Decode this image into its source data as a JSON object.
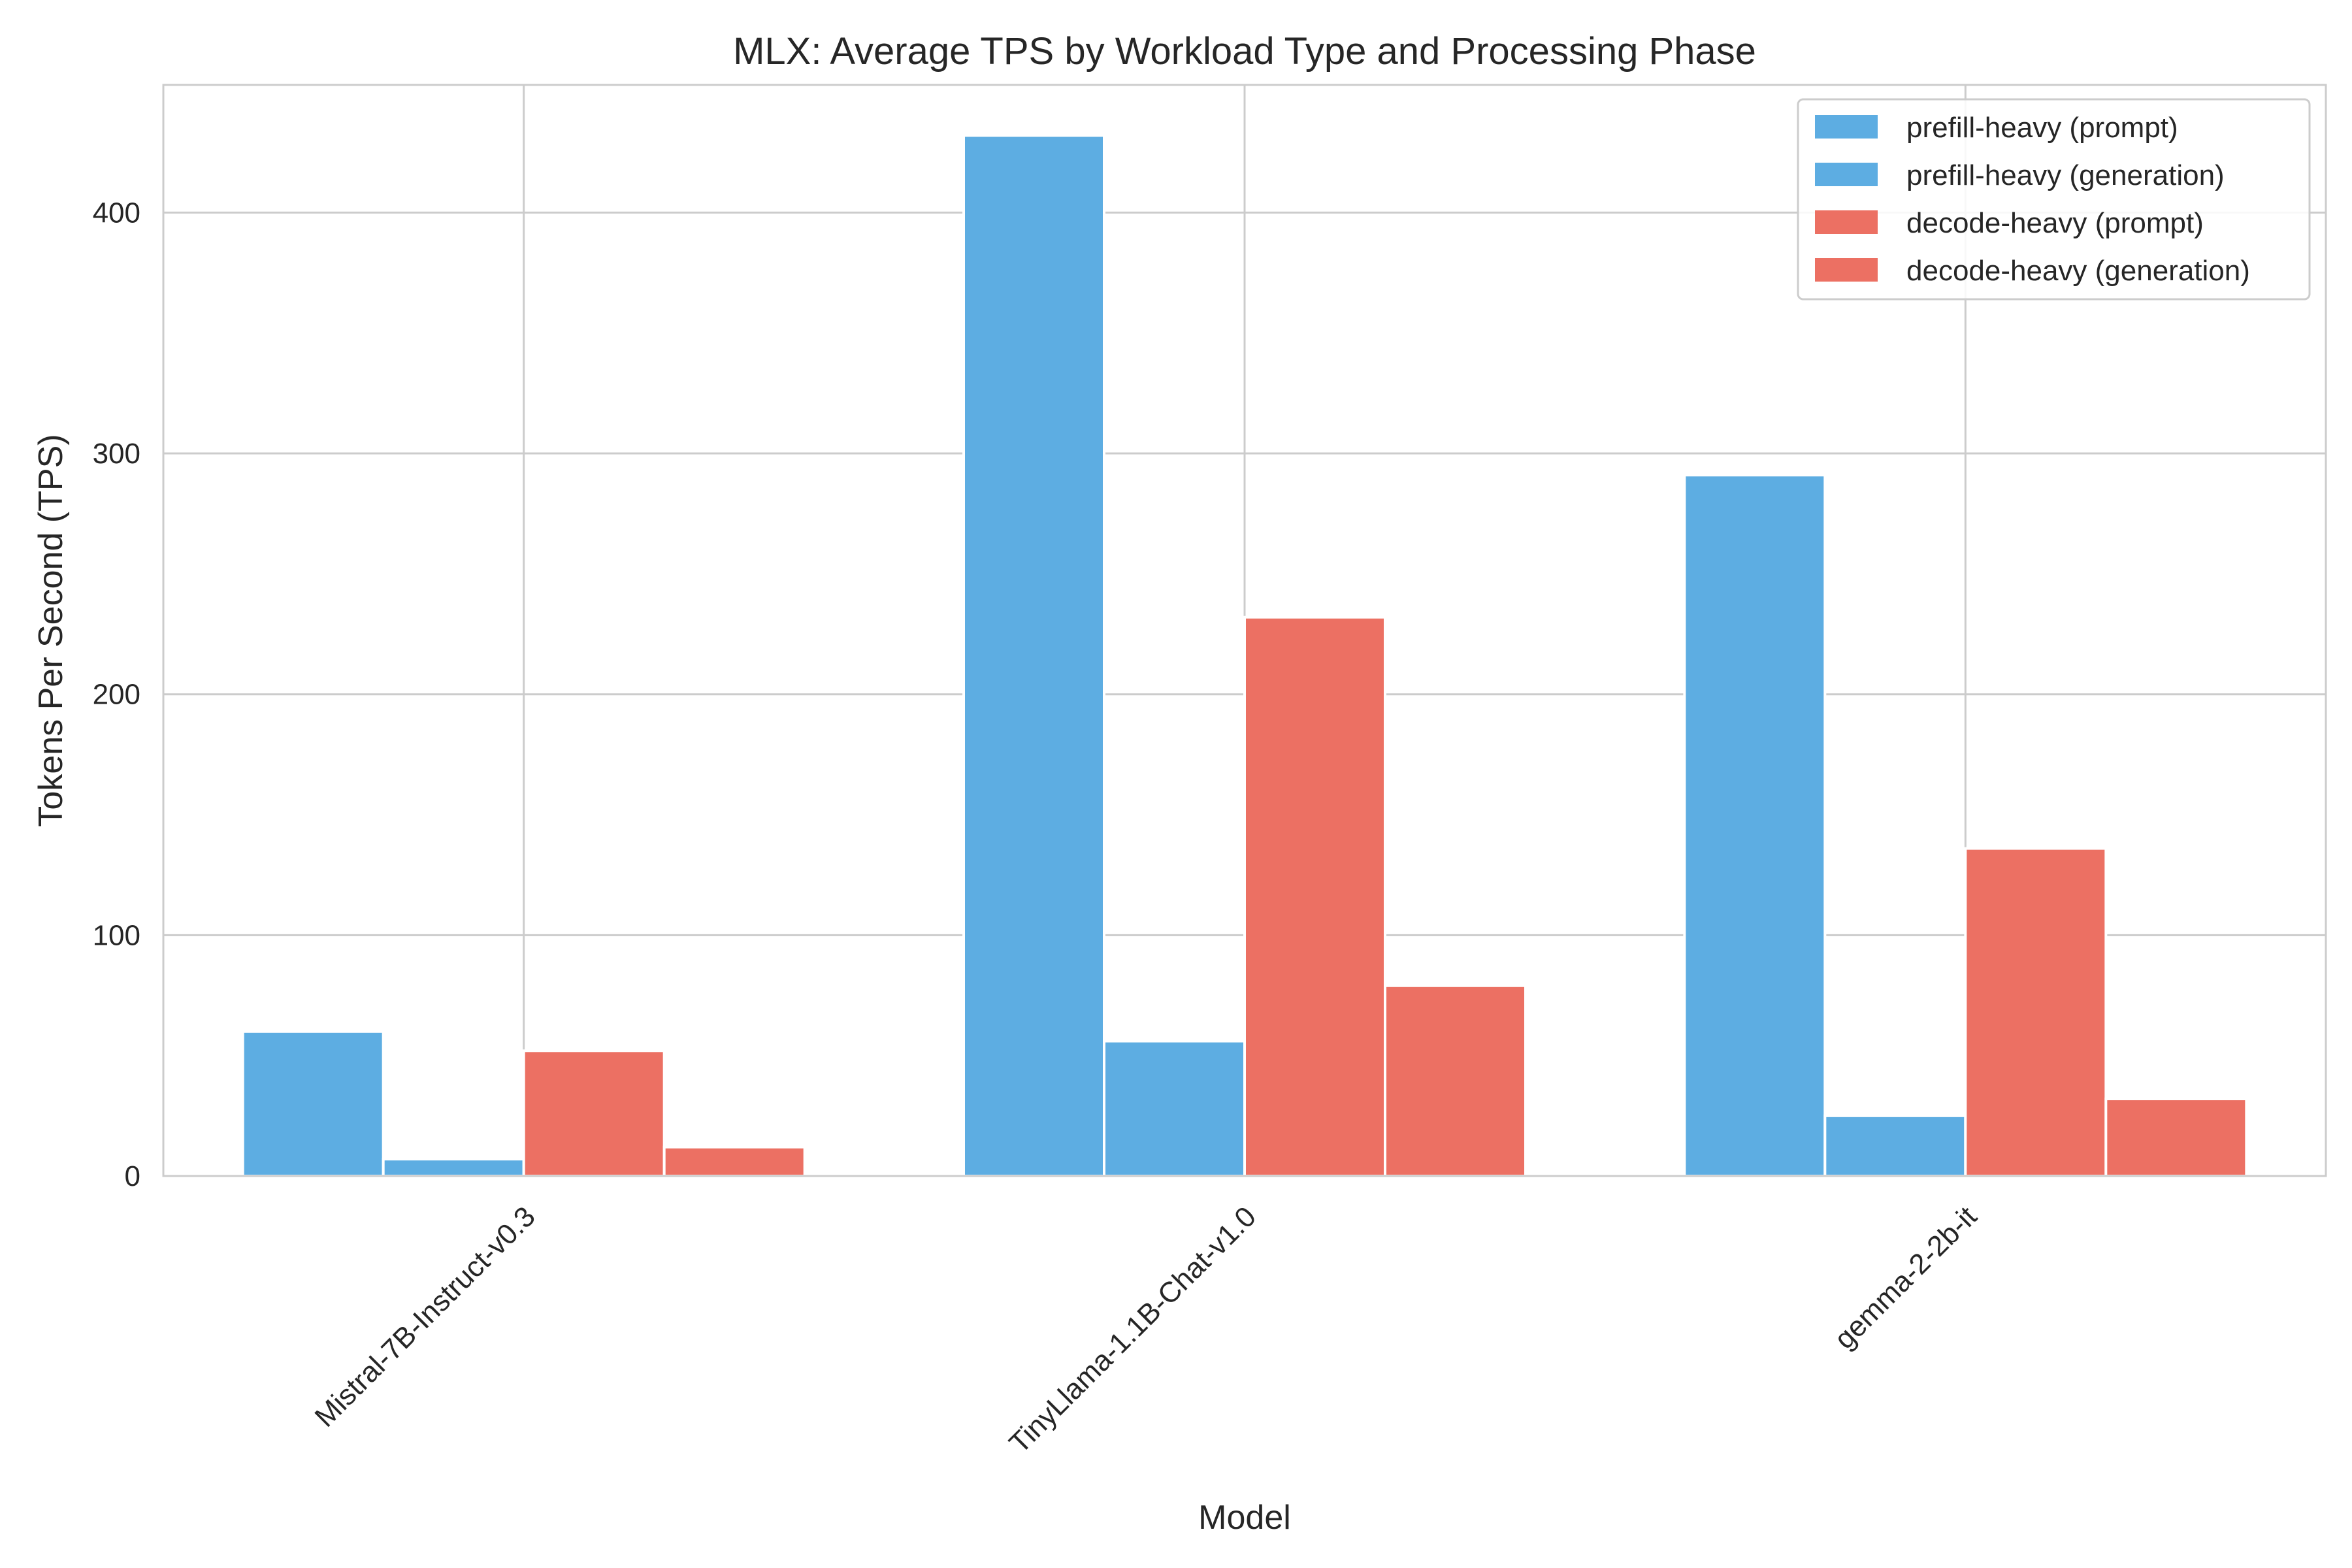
{
  "chart_data": {
    "type": "bar",
    "title": "MLX: Average TPS by Workload Type and Processing Phase",
    "xlabel": "Model",
    "ylabel": "Tokens Per Second (TPS)",
    "categories": [
      "Mistral-7B-Instruct-v0.3",
      "TinyLlama-1.1B-Chat-v1.0",
      "gemma-2-2b-it"
    ],
    "yticks": [
      0,
      100,
      200,
      300,
      400
    ],
    "ylim": [
      0,
      453
    ],
    "grid": true,
    "legend_position": "top-right",
    "series": [
      {
        "name": "prefill-heavy (prompt)",
        "color": "#5DADE2",
        "values": [
          60,
          432,
          291
        ]
      },
      {
        "name": "prefill-heavy (generation)",
        "color": "#5DADE2",
        "values": [
          7,
          56,
          25
        ]
      },
      {
        "name": "decode-heavy (prompt)",
        "color": "#EC7063",
        "values": [
          52,
          232,
          136
        ]
      },
      {
        "name": "decode-heavy (generation)",
        "color": "#EC7063",
        "values": [
          12,
          79,
          32
        ]
      }
    ]
  }
}
